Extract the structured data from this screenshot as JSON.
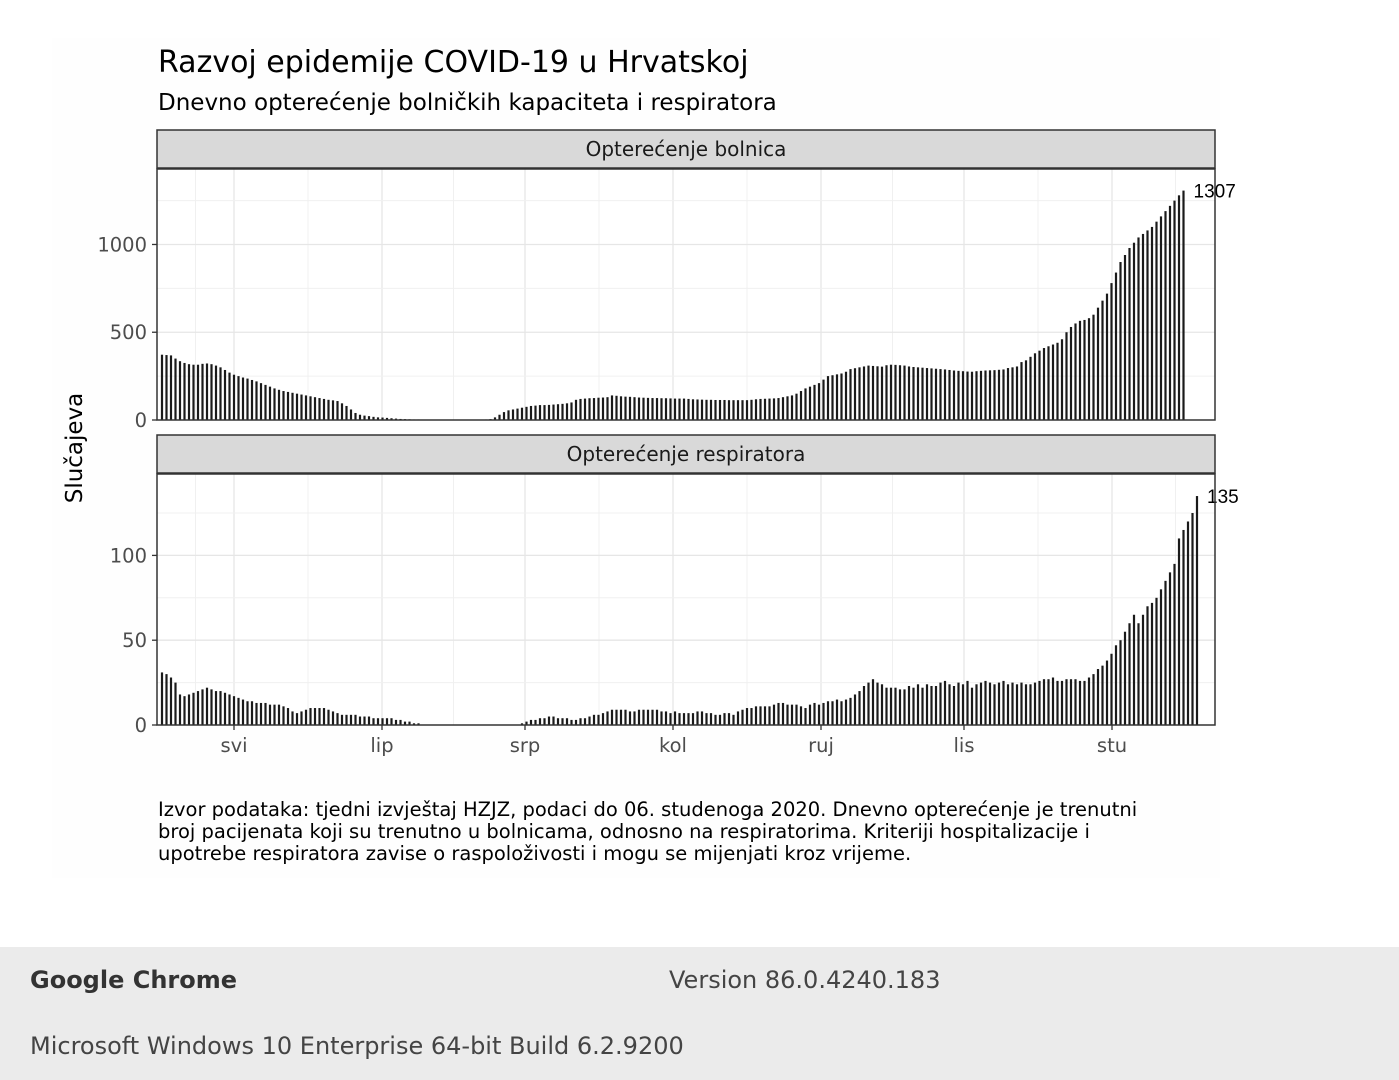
{
  "chart_data": {
    "type": "bar",
    "title": "Razvoj epidemije COVID-19 u Hrvatskoj",
    "subtitle": "Dnevno opterećenje bolničkih kapaciteta i respiratora",
    "ylabel": "Slučajeva",
    "x_ticks": [
      "svi",
      "lip",
      "srp",
      "kol",
      "ruj",
      "lis",
      "stu"
    ],
    "caption": "Izvor podataka: tjedni izvještaj HZJZ, podaci do 06. studenoga 2020. Dnevno opterećenje je trenutni broj pacijenata koji su trenutno u bolnicama, odnosno na respiratorima. Kriteriji hospitalizacije i upotrebe respiratora zavise o raspoloživosti i mogu se mijenjati kroz vrijeme.",
    "caption_lines": [
      "Izvor podataka: tjedni izvještaj HZJZ, podaci do 06. studenoga 2020. Dnevno opterećenje je trenutni",
      "broj pacijenata koji su trenutno u bolnicama, odnosno na respiratorima. Kriteriji hospitalizacije i",
      "upotrebe respiratora zavise o raspoloživosti i mogu se mijenjati kroz vrijeme."
    ],
    "grid": true,
    "bar_color": "#1a1a1a",
    "panels": [
      {
        "strip_label": "Opterećenje bolnica",
        "ylim": [
          0,
          1430
        ],
        "y_ticks": [
          0,
          500,
          1000
        ],
        "last_label": "1307",
        "values": [
          372,
          370,
          368,
          350,
          335,
          325,
          318,
          315,
          315,
          320,
          322,
          318,
          310,
          300,
          285,
          270,
          258,
          250,
          242,
          236,
          228,
          220,
          210,
          200,
          190,
          180,
          172,
          165,
          160,
          155,
          150,
          145,
          140,
          135,
          130,
          125,
          120,
          115,
          112,
          108,
          95,
          80,
          60,
          40,
          30,
          25,
          22,
          18,
          15,
          14,
          12,
          10,
          8,
          6,
          5,
          4,
          3,
          3,
          2,
          2,
          2,
          2,
          1,
          1,
          1,
          1,
          1,
          1,
          1,
          1,
          1,
          2,
          3,
          5,
          15,
          30,
          45,
          55,
          60,
          65,
          70,
          75,
          80,
          82,
          85,
          85,
          86,
          88,
          90,
          92,
          95,
          100,
          115,
          120,
          122,
          124,
          125,
          127,
          128,
          130,
          140,
          138,
          135,
          133,
          132,
          130,
          128,
          127,
          126,
          125,
          125,
          124,
          124,
          123,
          122,
          122,
          122,
          120,
          118,
          117,
          116,
          115,
          115,
          114,
          114,
          114,
          113,
          113,
          113,
          113,
          113,
          115,
          118,
          120,
          121,
          122,
          123,
          125,
          130,
          135,
          140,
          150,
          165,
          180,
          190,
          200,
          210,
          230,
          250,
          255,
          260,
          265,
          275,
          290,
          295,
          300,
          305,
          310,
          308,
          306,
          304,
          312,
          315,
          314,
          312,
          310,
          305,
          302,
          300,
          298,
          296,
          294,
          292,
          290,
          288,
          285,
          282,
          280,
          278,
          276,
          275,
          278,
          280,
          282,
          283,
          284,
          286,
          288,
          296,
          300,
          305,
          330,
          340,
          360,
          380,
          395,
          410,
          420,
          430,
          440,
          460,
          500,
          530,
          550,
          565,
          570,
          580,
          600,
          640,
          680,
          720,
          780,
          840,
          900,
          940,
          980,
          1010,
          1040,
          1060,
          1080,
          1100,
          1130,
          1160,
          1190,
          1220,
          1250,
          1280,
          1307
        ]
      },
      {
        "strip_label": "Opterećenje respiratora",
        "ylim": [
          0,
          148
        ],
        "y_ticks": [
          0,
          50,
          100
        ],
        "last_label": "135",
        "values": [
          31,
          30,
          28,
          25,
          18,
          17,
          18,
          19,
          20,
          21,
          22,
          21,
          20,
          20,
          19,
          18,
          17,
          16,
          15,
          14,
          14,
          13,
          13,
          13,
          12,
          12,
          12,
          11,
          10,
          8,
          7,
          8,
          9,
          10,
          10,
          10,
          10,
          9,
          8,
          7,
          6,
          6,
          6,
          6,
          5,
          5,
          5,
          4,
          4,
          4,
          4,
          4,
          3,
          3,
          2,
          2,
          1,
          1,
          0,
          0,
          0,
          0,
          0,
          0,
          0,
          0,
          0,
          0,
          0,
          0,
          0,
          0,
          0,
          0,
          0,
          0,
          0,
          0,
          0,
          0,
          1,
          2,
          3,
          3,
          4,
          4,
          5,
          5,
          4,
          4,
          4,
          3,
          3,
          4,
          4,
          5,
          6,
          6,
          7,
          8,
          9,
          9,
          9,
          9,
          8,
          8,
          9,
          9,
          9,
          9,
          9,
          8,
          8,
          7,
          8,
          7,
          7,
          7,
          7,
          8,
          8,
          7,
          7,
          6,
          6,
          7,
          7,
          6,
          8,
          9,
          10,
          10,
          11,
          11,
          11,
          11,
          12,
          13,
          13,
          12,
          12,
          12,
          11,
          10,
          12,
          13,
          12,
          13,
          14,
          14,
          15,
          14,
          15,
          16,
          18,
          20,
          23,
          25,
          27,
          25,
          24,
          22,
          22,
          22,
          21,
          21,
          23,
          22,
          24,
          22,
          24,
          23,
          23,
          25,
          26,
          24,
          23,
          25,
          24,
          26,
          22,
          24,
          25,
          26,
          25,
          24,
          25,
          26,
          24,
          25,
          24,
          25,
          24,
          24,
          25,
          26,
          27,
          27,
          28,
          26,
          26,
          27,
          27,
          27,
          26,
          26,
          28,
          30,
          33,
          35,
          38,
          42,
          47,
          50,
          55,
          60,
          65,
          60,
          65,
          70,
          72,
          75,
          80,
          85,
          90,
          95,
          110,
          115,
          120,
          125,
          135
        ]
      }
    ]
  },
  "footer": {
    "browser_name": "Google Chrome",
    "version": "Version 86.0.4240.183",
    "os": "Microsoft Windows 10 Enterprise 64-bit Build 6.2.9200"
  }
}
